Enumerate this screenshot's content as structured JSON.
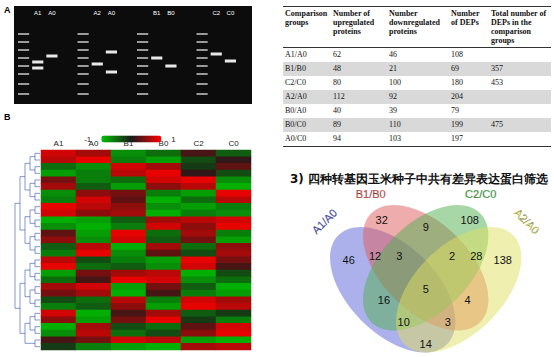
{
  "panel_letters": [
    "A",
    "B"
  ],
  "gel": {
    "lane_labels": [
      "A1",
      "A0",
      "A2",
      "A0",
      "B1",
      "B0",
      "C2",
      "C0"
    ]
  },
  "chart_data": {
    "type": "heatmap",
    "columns": [
      "A1",
      "A0",
      "B1",
      "B0",
      "C2",
      "C0"
    ],
    "cells": [
      [
        0.8,
        0.6,
        -0.7,
        -0.5,
        0.2,
        -0.4
      ],
      [
        0.7,
        0.9,
        -0.6,
        -0.8,
        -0.3,
        0.1
      ],
      [
        -0.5,
        -0.7,
        0.8,
        0.6,
        -0.2,
        0.3
      ],
      [
        -0.8,
        -0.6,
        0.7,
        0.9,
        0.1,
        -0.3
      ],
      [
        0.4,
        -0.6,
        -0.5,
        0.8,
        0.9,
        -0.7
      ],
      [
        0.6,
        -0.4,
        -0.8,
        0.5,
        0.7,
        -0.9
      ],
      [
        -0.7,
        0.5,
        0.4,
        -0.6,
        -0.8,
        0.9
      ],
      [
        -0.6,
        0.8,
        0.3,
        -0.9,
        -0.5,
        0.7
      ],
      [
        0.9,
        0.7,
        0.5,
        -0.7,
        -0.8,
        -0.6
      ],
      [
        0.8,
        0.5,
        0.6,
        -0.9,
        -0.6,
        -0.7
      ],
      [
        -0.9,
        -0.8,
        -0.4,
        0.6,
        0.7,
        0.8
      ],
      [
        -0.7,
        -0.9,
        -0.6,
        0.8,
        0.5,
        0.9
      ],
      [
        0.3,
        -0.8,
        0.9,
        -0.5,
        0.6,
        -0.6
      ],
      [
        0.5,
        -0.7,
        0.8,
        -0.4,
        0.4,
        -0.8
      ],
      [
        -0.4,
        0.7,
        -0.9,
        0.6,
        -0.5,
        0.5
      ],
      [
        -0.6,
        0.9,
        -0.7,
        0.3,
        -0.3,
        0.6
      ],
      [
        0.7,
        -0.3,
        -0.6,
        -0.8,
        0.9,
        0.4
      ],
      [
        0.9,
        -0.5,
        -0.4,
        -0.7,
        0.8,
        0.2
      ],
      [
        -0.8,
        0.4,
        0.6,
        0.7,
        -0.9,
        -0.3
      ],
      [
        -0.5,
        0.2,
        0.9,
        0.8,
        -0.7,
        -0.5
      ],
      [
        0.6,
        0.8,
        -0.8,
        0.4,
        -0.4,
        -0.9
      ],
      [
        0.4,
        0.6,
        -0.9,
        0.2,
        -0.6,
        -0.8
      ],
      [
        -0.3,
        -0.5,
        0.7,
        -0.6,
        0.8,
        0.6
      ],
      [
        -0.6,
        -0.4,
        0.5,
        -0.8,
        0.9,
        0.7
      ],
      [
        0.8,
        -0.9,
        0.2,
        0.6,
        -0.4,
        -0.2
      ],
      [
        0.5,
        -0.8,
        0.4,
        0.9,
        -0.2,
        -0.6
      ],
      [
        -0.9,
        0.6,
        -0.3,
        -0.5,
        0.3,
        0.8
      ],
      [
        -0.7,
        0.7,
        -0.5,
        -0.3,
        0.5,
        0.9
      ],
      [
        0.2,
        0.4,
        0.8,
        0.7,
        -0.8,
        -0.9
      ],
      [
        -0.2,
        -0.6,
        -0.8,
        -0.9,
        0.6,
        0.7
      ]
    ],
    "colorbar": {
      "range": [
        -1,
        1
      ],
      "ticks": [
        -1,
        1
      ],
      "colors": [
        "#00c000",
        "#1a1a1a",
        "#ff0000"
      ]
    },
    "tick_labels": "x"
  },
  "table": {
    "header": [
      "Comparison groups",
      "Number of upregulated proteins",
      "Number downregulated proteins",
      "Number of DEPs",
      "Total number of DEPs in the comparison groups"
    ],
    "rows": [
      [
        "A1/A0",
        62,
        46,
        108
      ],
      [
        "B1/B0",
        48,
        21,
        69
      ],
      [
        "C2/C0",
        80,
        100,
        180
      ],
      [
        "A2/A0",
        112,
        92,
        204
      ],
      [
        "B0/A0",
        40,
        39,
        79
      ],
      [
        "B0/C0",
        89,
        110,
        199
      ],
      [
        "A0/C0",
        94,
        103,
        197
      ]
    ],
    "totals": [
      {
        "rows": [
          "A1/A0",
          "B1/B0",
          "C2/C0"
        ],
        "value": 357
      },
      {
        "rows": [
          "B1/B0",
          "C2/C0",
          "A2/A0"
        ],
        "value": 453
      },
      {
        "rows": [
          "B0/A0",
          "B0/C0",
          "A0/C0"
        ],
        "value": 475
      }
    ]
  },
  "venn": {
    "title": "3) 四种转基因玉米种子中共有差异表达蛋白筛选",
    "sets": [
      {
        "name": "A1/A0",
        "color": "#5a64d8"
      },
      {
        "name": "B1/B0",
        "color": "#e05a5a"
      },
      {
        "name": "C2/C0",
        "color": "#4fb04f"
      },
      {
        "name": "A2/A0",
        "color": "#e0e060"
      }
    ],
    "regions": [
      {
        "sets": [
          "A1/A0"
        ],
        "count": 46
      },
      {
        "sets": [
          "B1/B0"
        ],
        "count": 32
      },
      {
        "sets": [
          "C2/C0"
        ],
        "count": 108
      },
      {
        "sets": [
          "A2/A0"
        ],
        "count": 138
      },
      {
        "sets": [
          "A1/A0",
          "B1/B0"
        ],
        "count": 12
      },
      {
        "sets": [
          "B1/B0",
          "C2/C0"
        ],
        "count": 9
      },
      {
        "sets": [
          "C2/C0",
          "A2/A0"
        ],
        "count": 28
      },
      {
        "sets": [
          "A1/A0",
          "B1/B0",
          "C2/C0"
        ],
        "count": 3
      },
      {
        "sets": [
          "B1/B0",
          "C2/C0",
          "A2/A0"
        ],
        "count": 2
      },
      {
        "sets": [
          "A1/A0",
          "B1/B0",
          "C2/C0",
          "A2/A0"
        ],
        "count": 5
      },
      {
        "sets": [
          "A1/A0",
          "C2/C0"
        ],
        "count": 16
      },
      {
        "sets": [
          "B1/B0",
          "A2/A0"
        ],
        "count": 4
      },
      {
        "sets": [
          "A1/A0",
          "C2/C0",
          "A2/A0"
        ],
        "count": 10
      },
      {
        "sets": [
          "A1/A0",
          "B1/B0",
          "A2/A0"
        ],
        "count": 3
      },
      {
        "sets": [
          "A1/A0",
          "A2/A0"
        ],
        "count": 14
      }
    ]
  }
}
